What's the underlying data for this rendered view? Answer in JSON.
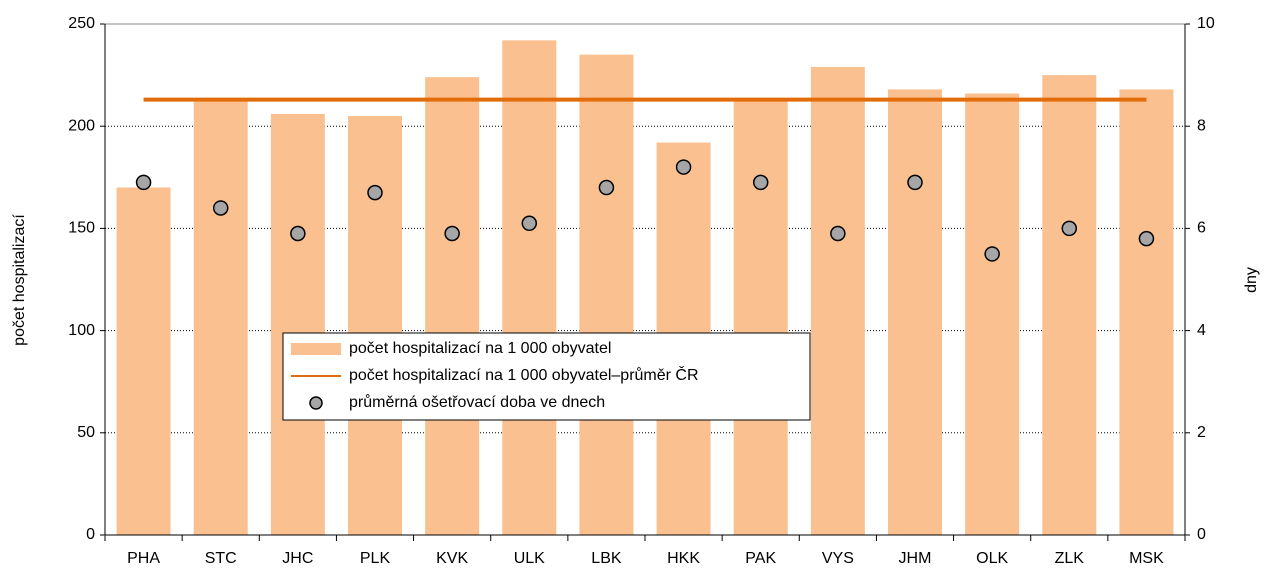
{
  "chart_data": {
    "type": "bar",
    "categories": [
      "PHA",
      "STC",
      "JHC",
      "PLK",
      "KVK",
      "ULK",
      "LBK",
      "HKK",
      "PAK",
      "VYS",
      "JHM",
      "OLK",
      "ZLK",
      "MSK"
    ],
    "series": [
      {
        "name": "počet hospitalizací na 1 000 obyvatel",
        "kind": "bar",
        "color": "#fac090",
        "values": [
          170,
          213,
          206,
          205,
          224,
          242,
          235,
          192,
          213,
          229,
          218,
          216,
          225,
          218
        ]
      },
      {
        "name": "počet hospitalizací na 1 000 obyvatel–průměr ČR",
        "kind": "line",
        "color": "#e36c0a",
        "values": [
          213,
          213,
          213,
          213,
          213,
          213,
          213,
          213,
          213,
          213,
          213,
          213,
          213,
          213
        ]
      },
      {
        "name": "průměrná ošetřovací doba ve dnech",
        "kind": "scatter",
        "color": "#a6a6a6",
        "axis": "y2",
        "values": [
          6.9,
          6.4,
          5.9,
          6.7,
          5.9,
          6.1,
          6.8,
          7.2,
          6.9,
          5.9,
          6.9,
          5.5,
          6.0,
          5.8
        ]
      }
    ],
    "ylabel": "počet hospitalizací",
    "y2label": "dny",
    "ylim": [
      0,
      250
    ],
    "yticks": [
      0,
      50,
      100,
      150,
      200,
      250
    ],
    "y2lim": [
      0,
      10
    ],
    "y2ticks": [
      0,
      2,
      4,
      6,
      8,
      10
    ],
    "grid": true,
    "legend": "center"
  }
}
